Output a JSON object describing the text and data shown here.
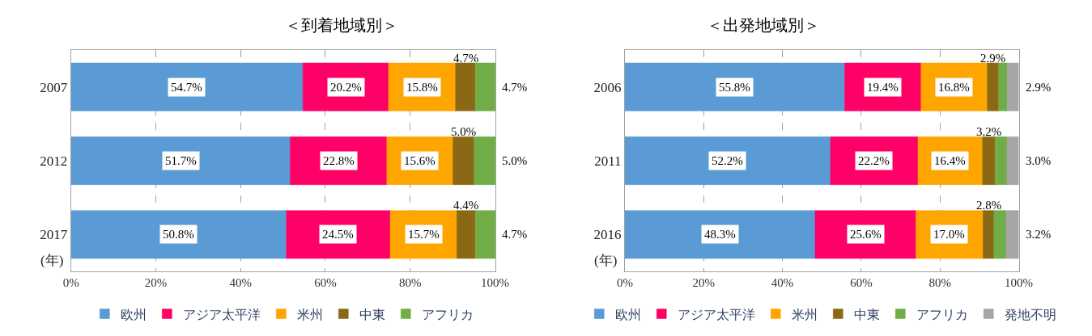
{
  "chart_data": [
    {
      "type": "bar",
      "orientation": "horizontal",
      "stacked": true,
      "title": "＜到着地域別＞",
      "ylabel": "(年)",
      "categories": [
        "2007",
        "2012",
        "2017"
      ],
      "xlim": [
        0,
        100.1
      ],
      "xticks": [
        {
          "value": 0,
          "label": "0%"
        },
        {
          "value": 20,
          "label": "20%"
        },
        {
          "value": 40,
          "label": "40%"
        },
        {
          "value": 60,
          "label": "60%"
        },
        {
          "value": 80,
          "label": "80%"
        },
        {
          "value": 100,
          "label": "100%"
        }
      ],
      "grid": "x",
      "legend": "bottom",
      "series": [
        {
          "name": "欧州",
          "color": "#5b9bd5",
          "values": [
            54.7,
            51.7,
            50.8
          ],
          "value_labels": [
            "54.7%",
            "51.7%",
            "50.8%"
          ]
        },
        {
          "name": "アジア太平洋",
          "color": "#ff0066",
          "values": [
            20.2,
            22.8,
            24.5
          ],
          "value_labels": [
            "20.2%",
            "22.8%",
            "24.5%"
          ]
        },
        {
          "name": "米州",
          "color": "#ffa500",
          "values": [
            15.8,
            15.6,
            15.7
          ],
          "value_labels": [
            "15.8%",
            "15.6%",
            "15.7%"
          ]
        },
        {
          "name": "中東",
          "color": "#8b6914",
          "values": [
            4.7,
            5.0,
            4.4
          ],
          "value_labels": [
            "4.7%",
            "5.0%",
            "4.4%"
          ]
        },
        {
          "name": "アフリカ",
          "color": "#70ad47",
          "values": [
            4.7,
            5.0,
            4.7
          ],
          "value_labels": [
            "4.7%",
            "5.0%",
            "4.7%"
          ]
        }
      ]
    },
    {
      "type": "bar",
      "orientation": "horizontal",
      "stacked": true,
      "title": "＜出発地域別＞",
      "ylabel": "(年)",
      "categories": [
        "2006",
        "2011",
        "2016"
      ],
      "xlim": [
        0,
        100
      ],
      "xticks": [
        {
          "value": 0,
          "label": "0%"
        },
        {
          "value": 20,
          "label": "20%"
        },
        {
          "value": 40,
          "label": "40%"
        },
        {
          "value": 60,
          "label": "60%"
        },
        {
          "value": 80,
          "label": "80%"
        },
        {
          "value": 100,
          "label": "100%"
        }
      ],
      "grid": "x",
      "legend": "bottom",
      "series": [
        {
          "name": "欧州",
          "color": "#5b9bd5",
          "values": [
            55.8,
            52.2,
            48.3
          ],
          "value_labels": [
            "55.8%",
            "52.2%",
            "48.3%"
          ]
        },
        {
          "name": "アジア太平洋",
          "color": "#ff0066",
          "values": [
            19.4,
            22.2,
            25.6
          ],
          "value_labels": [
            "19.4%",
            "22.2%",
            "25.6%"
          ]
        },
        {
          "name": "米州",
          "color": "#ffa500",
          "values": [
            16.8,
            16.4,
            17.0
          ],
          "value_labels": [
            "16.8%",
            "16.4%",
            "17.0%"
          ]
        },
        {
          "name": "中東",
          "color": "#8b6914",
          "values": [
            2.9,
            3.2,
            2.8
          ],
          "value_labels": [
            "2.9%",
            "3.2%",
            "2.8%"
          ]
        },
        {
          "name": "アフリカ",
          "color": "#70ad47",
          "values": [
            2.2,
            3.0,
            3.1
          ],
          "value_labels": [
            null,
            null,
            null
          ]
        },
        {
          "name": "発地不明",
          "color": "#a6a6a6",
          "values": [
            2.9,
            3.0,
            3.2
          ],
          "value_labels": [
            "2.9%",
            "3.0%",
            "3.2%"
          ]
        }
      ]
    }
  ]
}
